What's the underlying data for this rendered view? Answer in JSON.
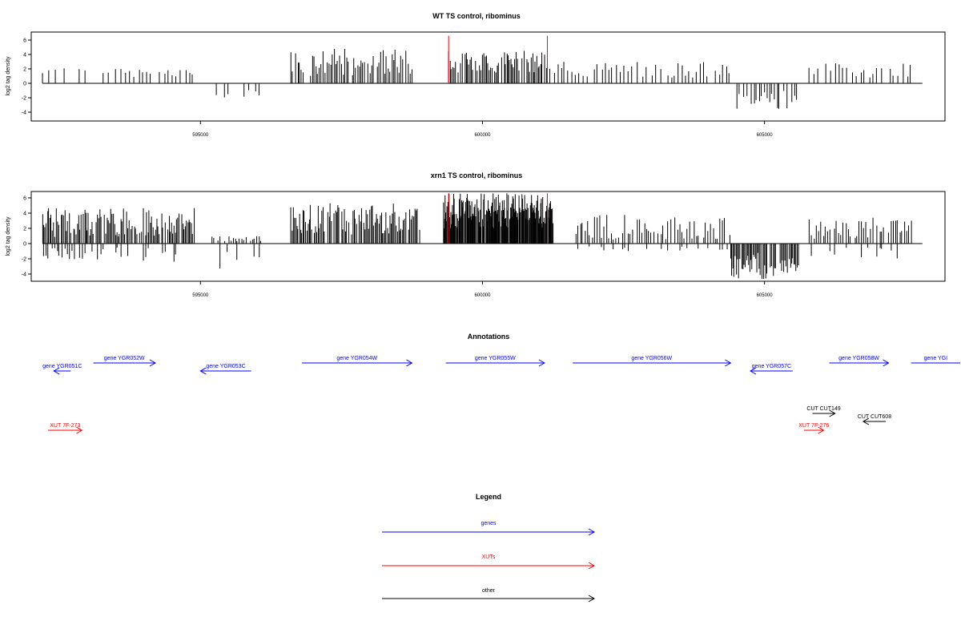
{
  "chart_data": [
    {
      "type": "bar",
      "title": "WT TS control, ribominus",
      "ylabel": "log2 tag density",
      "xlim": [
        592000,
        608200
      ],
      "ylim": [
        -5,
        7
      ],
      "yticks": [
        6,
        4,
        2,
        0,
        -2,
        -4
      ],
      "xticks": [
        595000,
        600000,
        605000
      ],
      "xtick_labels": [
        "595000",
        "600000",
        "605000"
      ],
      "baseline": [
        592200,
        607800
      ],
      "highlight_bounds": [
        599400,
        601150
      ],
      "highlight_ymax": 6.6,
      "segments": [
        {
          "from": 592200,
          "to": 593600,
          "step": 130,
          "pos": [
            1.3,
            2.3
          ],
          "neg": null
        },
        {
          "from": 593600,
          "to": 594900,
          "step": 75,
          "pos": [
            0.8,
            2.0
          ],
          "neg": null
        },
        {
          "from": 595300,
          "to": 596100,
          "step": 110,
          "pos": null,
          "neg": [
            -0.8,
            -2.0
          ]
        },
        {
          "from": 596600,
          "to": 598800,
          "step": 32,
          "pos": [
            1.0,
            4.8
          ],
          "neg": null
        },
        {
          "from": 599400,
          "to": 601150,
          "step": 24,
          "pos": [
            1.5,
            4.5
          ],
          "neg": null
        },
        {
          "from": 601200,
          "to": 604400,
          "step": 65,
          "pos": [
            0.8,
            3.0
          ],
          "neg": null
        },
        {
          "from": 604500,
          "to": 605600,
          "step": 45,
          "pos": null,
          "neg": [
            -1.0,
            -3.6
          ]
        },
        {
          "from": 605800,
          "to": 607600,
          "step": 75,
          "pos": [
            0.8,
            2.8
          ],
          "neg": null
        }
      ]
    },
    {
      "type": "bar",
      "title": "xrn1 TS control, ribominus",
      "ylabel": "log2 tag density",
      "xlim": [
        592000,
        608200
      ],
      "ylim": [
        -5,
        7
      ],
      "yticks": [
        6,
        4,
        2,
        0,
        -2,
        -4
      ],
      "xticks": [
        595000,
        600000,
        605000
      ],
      "xtick_labels": [
        "595000",
        "600000",
        "605000"
      ],
      "baseline": [
        592200,
        607800
      ],
      "highlight_bounds": [
        599400,
        601150
      ],
      "highlight_ymax": 6.6,
      "segments": [
        {
          "from": 592200,
          "to": 594900,
          "step": 22,
          "pos": [
            0.8,
            4.7
          ],
          "neg": [
            -0.5,
            -2.4
          ]
        },
        {
          "from": 595200,
          "to": 596100,
          "step": 38,
          "pos": [
            0.3,
            1.0
          ],
          "neg": [
            -0.8,
            -3.3
          ]
        },
        {
          "from": 596600,
          "to": 598900,
          "step": 22,
          "pos": [
            1.2,
            5.3
          ],
          "neg": null
        },
        {
          "from": 599300,
          "to": 601250,
          "step": 10,
          "pos": [
            2.0,
            6.6
          ],
          "neg": null
        },
        {
          "from": 601650,
          "to": 604400,
          "step": 42,
          "pos": [
            0.5,
            3.8
          ],
          "neg": [
            -0.3,
            -1.0
          ]
        },
        {
          "from": 604400,
          "to": 605600,
          "step": 20,
          "pos": null,
          "neg": [
            -1.0,
            -4.7
          ]
        },
        {
          "from": 605800,
          "to": 607600,
          "step": 40,
          "pos": [
            0.5,
            3.5
          ],
          "neg": [
            -0.5,
            -2.0
          ]
        }
      ]
    }
  ],
  "annotations": {
    "title": "Annotations",
    "items": [
      {
        "label": "gene YGR051C",
        "color": "#0000ff",
        "from": 592700,
        "to": 592400,
        "row": 2
      },
      {
        "label": "gene YGR052W",
        "color": "#0000ff",
        "from": 593100,
        "to": 594200,
        "row": 1
      },
      {
        "label": "gene YGR053C",
        "color": "#0000ff",
        "from": 595900,
        "to": 595000,
        "row": 2
      },
      {
        "label": "gene YGR054W",
        "color": "#0000ff",
        "from": 596800,
        "to": 598750,
        "row": 1
      },
      {
        "label": "gene YGR055W",
        "color": "#0000ff",
        "from": 599350,
        "to": 601100,
        "row": 1
      },
      {
        "label": "gene YGR056W",
        "color": "#0000ff",
        "from": 601600,
        "to": 604400,
        "row": 1
      },
      {
        "label": "gene YGR057C",
        "color": "#0000ff",
        "from": 605500,
        "to": 604750,
        "row": 2
      },
      {
        "label": "gene YGR058W",
        "color": "#0000ff",
        "from": 606150,
        "to": 607200,
        "row": 1
      },
      {
        "label": "gene YGI",
        "color": "#0000ff",
        "from": 607600,
        "to": 608500,
        "row": 1
      },
      {
        "label": "CUT CUT149",
        "color": "#000000",
        "from": 605850,
        "to": 606250,
        "row": 3
      },
      {
        "label": "CUT CUT608",
        "color": "#000000",
        "from": 607150,
        "to": 606750,
        "row": 4
      },
      {
        "label": "XUT 7F-273",
        "color": "#ff0000",
        "from": 592300,
        "to": 592900,
        "row": 5
      },
      {
        "label": "XUT 7F-276",
        "color": "#ff0000",
        "from": 605700,
        "to": 606050,
        "row": 5
      }
    ]
  },
  "legend": {
    "title": "Legend",
    "items": [
      {
        "label": "genes",
        "color": "#0000ff"
      },
      {
        "label": "XUTs",
        "color": "#ff0000"
      },
      {
        "label": "other",
        "color": "#000000"
      }
    ]
  }
}
